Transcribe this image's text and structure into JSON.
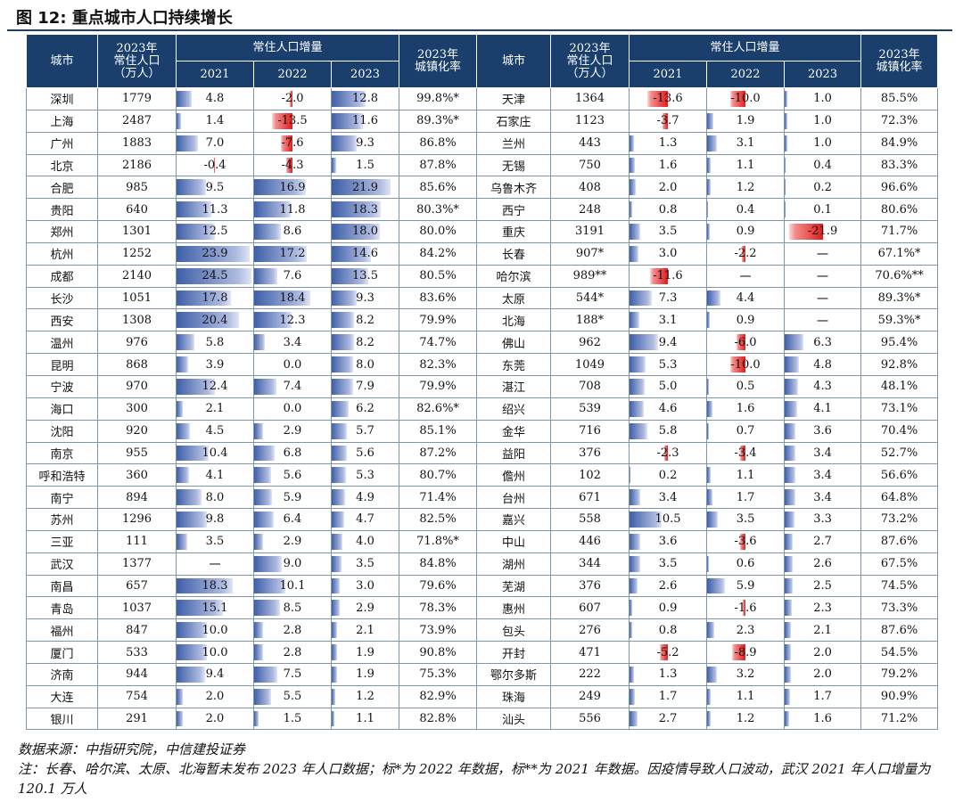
{
  "title": "图 12: 重点城市人口持续增长",
  "header": {
    "city": "城市",
    "pop_2023": "2023年\n常住人口\n（万人）",
    "increment": "常住人口增量",
    "y2021": "2021",
    "y2022": "2022",
    "y2023": "2023",
    "urban": "2023年\n城镇化率"
  },
  "bar_colors": {
    "positive": "#3e5fa8",
    "negative": "#e11c1c"
  },
  "rows": [
    {
      "left": [
        "深圳",
        "1779",
        "4.8",
        "-2.0",
        "12.8",
        "99.8%*"
      ],
      "right": [
        "天津",
        "1364",
        "-13.6",
        "-10.0",
        "1.0",
        "85.5%"
      ]
    },
    {
      "left": [
        "上海",
        "2487",
        "1.4",
        "-13.5",
        "11.6",
        "89.3%*"
      ],
      "right": [
        "石家庄",
        "1123",
        "-3.7",
        "1.9",
        "1.0",
        "72.3%"
      ]
    },
    {
      "left": [
        "广州",
        "1883",
        "7.0",
        "-7.6",
        "9.3",
        "86.8%"
      ],
      "right": [
        "兰州",
        "443",
        "1.3",
        "3.1",
        "1.0",
        "84.9%"
      ]
    },
    {
      "left": [
        "北京",
        "2186",
        "-0.4",
        "-4.3",
        "1.5",
        "87.8%"
      ],
      "right": [
        "无锡",
        "750",
        "1.6",
        "1.1",
        "0.4",
        "83.3%"
      ]
    },
    {
      "left": [
        "合肥",
        "985",
        "9.5",
        "16.9",
        "21.9",
        "85.6%"
      ],
      "right": [
        "乌鲁木齐",
        "408",
        "2.0",
        "1.2",
        "0.2",
        "96.6%"
      ]
    },
    {
      "left": [
        "贵阳",
        "640",
        "11.3",
        "11.8",
        "18.3",
        "80.3%*"
      ],
      "right": [
        "西宁",
        "248",
        "0.8",
        "0.4",
        "0.1",
        "80.6%"
      ]
    },
    {
      "left": [
        "郑州",
        "1301",
        "12.5",
        "8.6",
        "18.0",
        "80.0%"
      ],
      "right": [
        "重庆",
        "3191",
        "3.5",
        "0.9",
        "-21.9",
        "71.7%"
      ]
    },
    {
      "left": [
        "杭州",
        "1252",
        "23.9",
        "17.2",
        "14.6",
        "84.2%"
      ],
      "right": [
        "长春",
        "907*",
        "3.0",
        "-2.2",
        "一",
        "67.1%*"
      ]
    },
    {
      "left": [
        "成都",
        "2140",
        "24.5",
        "7.6",
        "13.5",
        "80.5%"
      ],
      "right": [
        "哈尔滨",
        "989**",
        "-11.6",
        "一",
        "一",
        "70.6%**"
      ]
    },
    {
      "left": [
        "长沙",
        "1051",
        "17.8",
        "18.4",
        "9.3",
        "83.6%"
      ],
      "right": [
        "太原",
        "544*",
        "7.3",
        "4.4",
        "一",
        "89.3%*"
      ]
    },
    {
      "left": [
        "西安",
        "1308",
        "20.4",
        "12.3",
        "8.2",
        "79.9%"
      ],
      "right": [
        "北海",
        "188*",
        "3.1",
        "0.9",
        "一",
        "59.3%*"
      ]
    },
    {
      "left": [
        "温州",
        "976",
        "5.8",
        "3.4",
        "8.2",
        "74.7%"
      ],
      "right": [
        "佛山",
        "962",
        "9.4",
        "-6.0",
        "6.3",
        "95.4%"
      ]
    },
    {
      "left": [
        "昆明",
        "868",
        "3.9",
        "0.0",
        "8.0",
        "82.3%"
      ],
      "right": [
        "东莞",
        "1049",
        "5.3",
        "-10.0",
        "4.8",
        "92.8%"
      ]
    },
    {
      "left": [
        "宁波",
        "970",
        "12.4",
        "7.4",
        "7.9",
        "79.9%"
      ],
      "right": [
        "湛江",
        "708",
        "5.0",
        "0.5",
        "4.3",
        "48.1%"
      ]
    },
    {
      "left": [
        "海口",
        "300",
        "2.1",
        "0.0",
        "6.2",
        "82.6%*"
      ],
      "right": [
        "绍兴",
        "539",
        "4.6",
        "1.6",
        "4.1",
        "73.1%"
      ]
    },
    {
      "left": [
        "沈阳",
        "920",
        "4.5",
        "2.9",
        "5.7",
        "85.1%"
      ],
      "right": [
        "金华",
        "716",
        "5.8",
        "0.7",
        "3.6",
        "70.4%"
      ]
    },
    {
      "left": [
        "南京",
        "955",
        "10.4",
        "6.8",
        "5.6",
        "87.2%"
      ],
      "right": [
        "益阳",
        "376",
        "-2.3",
        "-3.4",
        "3.4",
        "52.7%"
      ]
    },
    {
      "left": [
        "呼和浩特",
        "360",
        "4.1",
        "5.6",
        "5.3",
        "80.7%"
      ],
      "right": [
        "儋州",
        "102",
        "0.2",
        "1.1",
        "3.4",
        "56.6%"
      ]
    },
    {
      "left": [
        "南宁",
        "894",
        "8.0",
        "5.9",
        "4.9",
        "71.4%"
      ],
      "right": [
        "台州",
        "671",
        "3.4",
        "1.7",
        "3.4",
        "64.8%"
      ]
    },
    {
      "left": [
        "苏州",
        "1296",
        "9.8",
        "6.4",
        "4.7",
        "82.5%"
      ],
      "right": [
        "嘉兴",
        "558",
        "10.5",
        "3.5",
        "3.3",
        "73.2%"
      ]
    },
    {
      "left": [
        "三亚",
        "111",
        "3.5",
        "2.9",
        "4.0",
        "71.8%*"
      ],
      "right": [
        "中山",
        "446",
        "3.6",
        "-3.6",
        "2.7",
        "87.6%"
      ]
    },
    {
      "left": [
        "武汉",
        "1377",
        "一",
        "9.0",
        "3.5",
        "84.8%"
      ],
      "right": [
        "湖州",
        "344",
        "3.5",
        "0.6",
        "2.6",
        "67.5%"
      ]
    },
    {
      "left": [
        "南昌",
        "657",
        "18.3",
        "10.1",
        "3.0",
        "79.6%"
      ],
      "right": [
        "芜湖",
        "376",
        "2.6",
        "5.9",
        "2.5",
        "74.5%"
      ]
    },
    {
      "left": [
        "青岛",
        "1037",
        "15.1",
        "8.5",
        "2.9",
        "78.3%"
      ],
      "right": [
        "惠州",
        "607",
        "0.9",
        "-1.6",
        "2.3",
        "73.3%"
      ]
    },
    {
      "left": [
        "福州",
        "847",
        "10.0",
        "2.8",
        "2.1",
        "73.9%"
      ],
      "right": [
        "包头",
        "276",
        "0.8",
        "2.3",
        "2.1",
        "87.6%"
      ]
    },
    {
      "left": [
        "厦门",
        "533",
        "10.0",
        "2.8",
        "1.9",
        "90.8%"
      ],
      "right": [
        "开封",
        "471",
        "-5.2",
        "-8.9",
        "2.0",
        "54.5%"
      ]
    },
    {
      "left": [
        "济南",
        "944",
        "9.4",
        "7.5",
        "1.9",
        "75.3%"
      ],
      "right": [
        "鄂尔多斯",
        "222",
        "1.3",
        "3.2",
        "2.0",
        "79.2%"
      ]
    },
    {
      "left": [
        "大连",
        "754",
        "2.0",
        "5.5",
        "1.2",
        "82.9%"
      ],
      "right": [
        "珠海",
        "249",
        "1.7",
        "1.1",
        "1.7",
        "90.9%"
      ]
    },
    {
      "left": [
        "银川",
        "291",
        "2.0",
        "1.5",
        "1.1",
        "82.8%"
      ],
      "right": [
        "汕头",
        "556",
        "2.7",
        "1.2",
        "1.6",
        "71.2%"
      ]
    }
  ],
  "source": "数据来源：中指研究院，中信建投证券",
  "note": "注：长春、哈尔滨、太原、北海暂未发布 2023 年人口数据；标*为 2022 年数据，标**为 2021 年数据。因疫情导致人口波动，武汉 2021 年人口增量为 120.1 万人"
}
